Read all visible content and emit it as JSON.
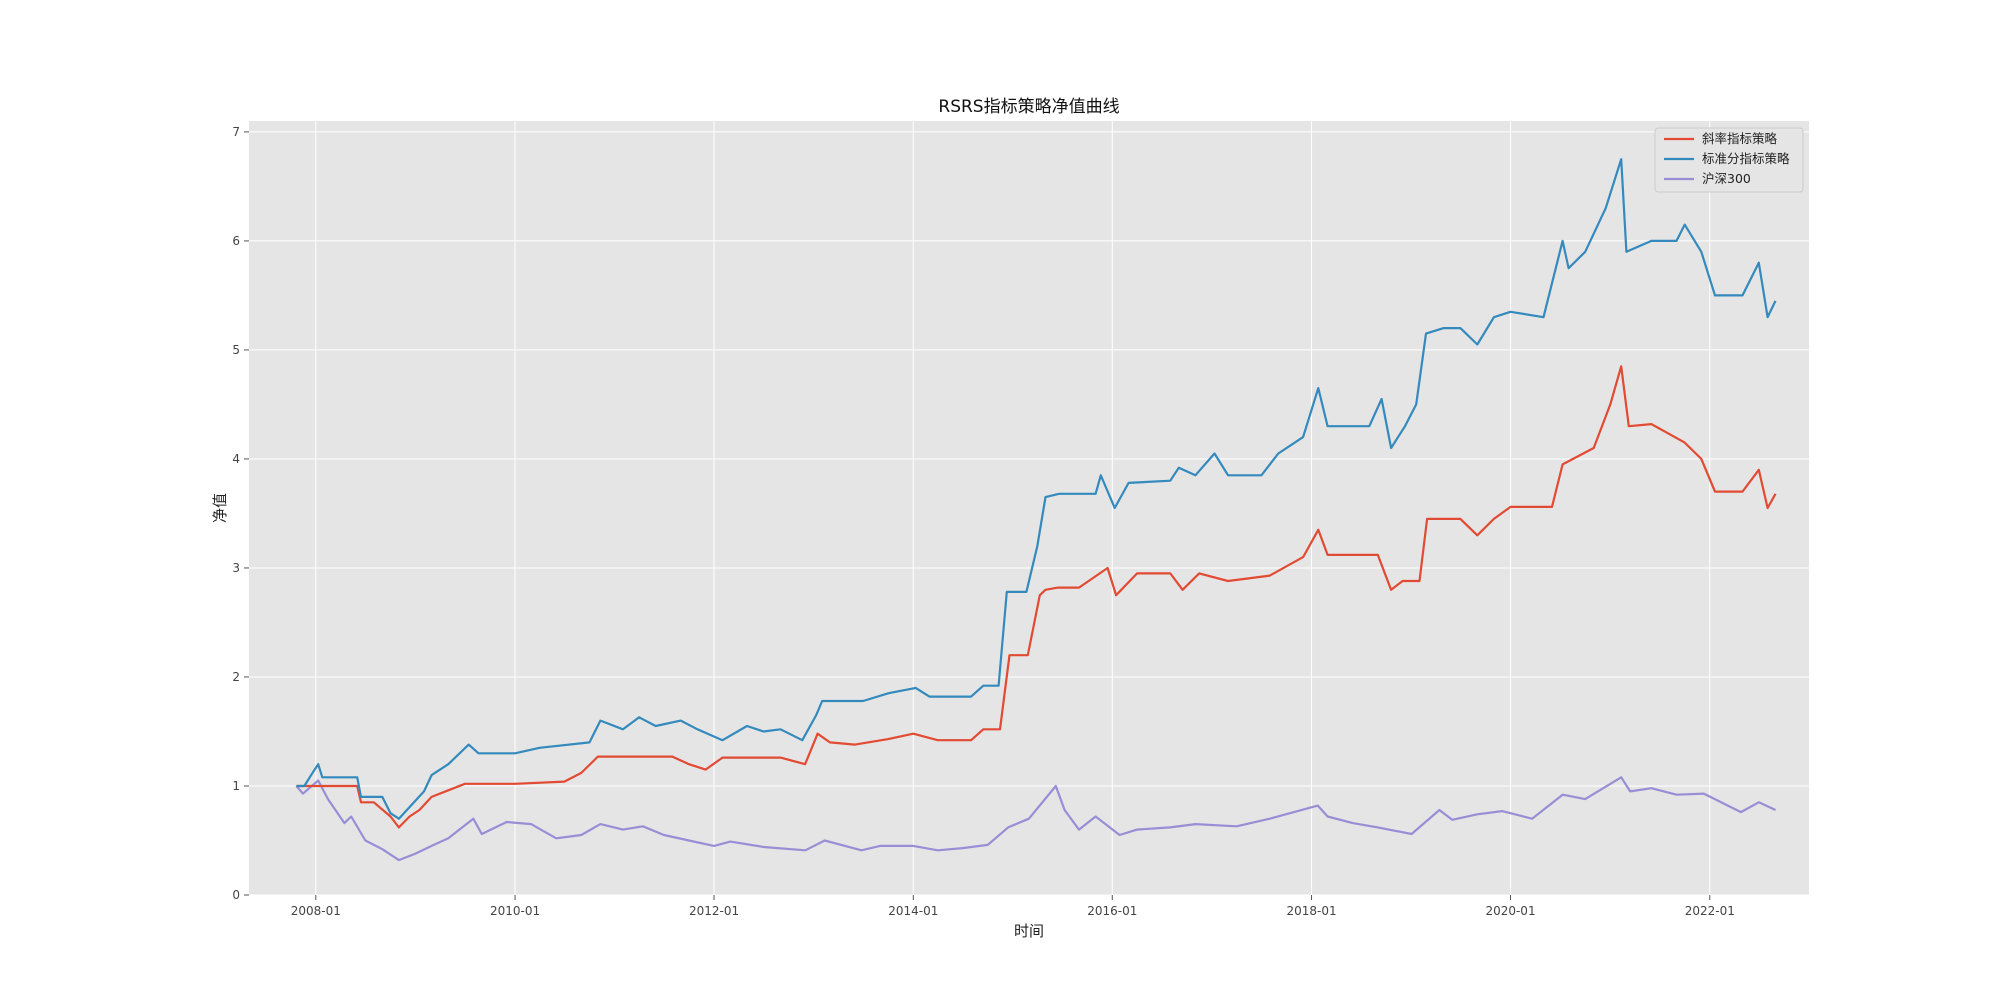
{
  "chart_data": {
    "type": "line",
    "title": "RSRS指标策略净值曲线",
    "xlabel": "时间",
    "ylabel": "净值",
    "xlim": [
      "2007-05-01",
      "2022-12-31"
    ],
    "ylim": [
      0,
      7.1
    ],
    "x_ticks": [
      "2008-01",
      "2010-01",
      "2012-01",
      "2014-01",
      "2016-01",
      "2018-01",
      "2020-01",
      "2022-01"
    ],
    "y_ticks": [
      "0",
      "1",
      "2",
      "3",
      "4",
      "5",
      "6",
      "7"
    ],
    "grid": true,
    "legend_position": "top-right",
    "legend": [
      "斜率指标策略",
      "标准分指标策略",
      "沪深300"
    ],
    "colors": {
      "background": "#e5e5e5",
      "grid": "#ffffff",
      "slope": "#e24a33",
      "zscore": "#348abd",
      "index": "#988ed5"
    },
    "series": [
      {
        "name": "斜率指标策略",
        "color": "#e24a33",
        "points": [
          [
            "2007-10-22",
            1.0
          ],
          [
            "2007-11-20",
            1.0
          ],
          [
            "2008-06-01",
            1.0
          ],
          [
            "2008-06-15",
            0.85
          ],
          [
            "2008-08-01",
            0.85
          ],
          [
            "2008-10-01",
            0.72
          ],
          [
            "2008-11-01",
            0.62
          ],
          [
            "2008-12-10",
            0.72
          ],
          [
            "2009-01-15",
            0.78
          ],
          [
            "2009-03-01",
            0.9
          ],
          [
            "2009-05-01",
            0.96
          ],
          [
            "2009-07-01",
            1.02
          ],
          [
            "2010-01-01",
            1.02
          ],
          [
            "2010-07-01",
            1.04
          ],
          [
            "2010-09-01",
            1.12
          ],
          [
            "2010-11-01",
            1.27
          ],
          [
            "2011-08-01",
            1.27
          ],
          [
            "2011-10-01",
            1.2
          ],
          [
            "2011-12-01",
            1.15
          ],
          [
            "2012-02-01",
            1.26
          ],
          [
            "2012-09-01",
            1.26
          ],
          [
            "2012-11-30",
            1.2
          ],
          [
            "2013-01-15",
            1.48
          ],
          [
            "2013-03-01",
            1.4
          ],
          [
            "2013-06-01",
            1.38
          ],
          [
            "2013-10-01",
            1.43
          ],
          [
            "2014-01-01",
            1.48
          ],
          [
            "2014-04-01",
            1.42
          ],
          [
            "2014-08-01",
            1.42
          ],
          [
            "2014-09-15",
            1.52
          ],
          [
            "2014-11-15",
            1.52
          ],
          [
            "2014-12-20",
            2.2
          ],
          [
            "2015-02-25",
            2.2
          ],
          [
            "2015-04-10",
            2.75
          ],
          [
            "2015-05-01",
            2.8
          ],
          [
            "2015-06-15",
            2.82
          ],
          [
            "2015-09-01",
            2.82
          ],
          [
            "2015-12-15",
            3.0
          ],
          [
            "2016-01-15",
            2.75
          ],
          [
            "2016-04-01",
            2.95
          ],
          [
            "2016-08-01",
            2.95
          ],
          [
            "2016-09-15",
            2.8
          ],
          [
            "2016-11-15",
            2.95
          ],
          [
            "2017-03-01",
            2.88
          ],
          [
            "2017-08-01",
            2.93
          ],
          [
            "2017-12-01",
            3.1
          ],
          [
            "2018-01-26",
            3.35
          ],
          [
            "2018-03-01",
            3.12
          ],
          [
            "2018-09-01",
            3.12
          ],
          [
            "2018-10-20",
            2.8
          ],
          [
            "2018-12-01",
            2.88
          ],
          [
            "2019-02-01",
            2.88
          ],
          [
            "2019-03-01",
            3.45
          ],
          [
            "2019-05-01",
            3.45
          ],
          [
            "2019-07-01",
            3.45
          ],
          [
            "2019-09-01",
            3.3
          ],
          [
            "2019-11-01",
            3.45
          ],
          [
            "2020-01-01",
            3.56
          ],
          [
            "2020-06-01",
            3.56
          ],
          [
            "2020-07-10",
            3.95
          ],
          [
            "2020-11-01",
            4.1
          ],
          [
            "2021-01-01",
            4.5
          ],
          [
            "2021-02-10",
            4.85
          ],
          [
            "2021-03-10",
            4.3
          ],
          [
            "2021-06-01",
            4.32
          ],
          [
            "2021-10-01",
            4.15
          ],
          [
            "2021-12-01",
            4.0
          ],
          [
            "2022-01-20",
            3.7
          ],
          [
            "2022-05-01",
            3.7
          ],
          [
            "2022-06-30",
            3.9
          ],
          [
            "2022-08-01",
            3.55
          ],
          [
            "2022-08-30",
            3.68
          ]
        ]
      },
      {
        "name": "标准分指标策略",
        "color": "#348abd",
        "points": [
          [
            "2007-10-22",
            1.0
          ],
          [
            "2007-11-20",
            1.0
          ],
          [
            "2007-12-20",
            1.12
          ],
          [
            "2008-01-10",
            1.2
          ],
          [
            "2008-01-25",
            1.08
          ],
          [
            "2008-06-01",
            1.08
          ],
          [
            "2008-06-15",
            0.9
          ],
          [
            "2008-09-01",
            0.9
          ],
          [
            "2008-10-01",
            0.75
          ],
          [
            "2008-11-01",
            0.7
          ],
          [
            "2008-12-15",
            0.82
          ],
          [
            "2009-02-01",
            0.95
          ],
          [
            "2009-03-01",
            1.1
          ],
          [
            "2009-05-01",
            1.2
          ],
          [
            "2009-07-15",
            1.38
          ],
          [
            "2009-08-20",
            1.3
          ],
          [
            "2010-01-01",
            1.3
          ],
          [
            "2010-04-01",
            1.35
          ],
          [
            "2010-10-01",
            1.4
          ],
          [
            "2010-11-10",
            1.6
          ],
          [
            "2011-02-01",
            1.52
          ],
          [
            "2011-04-01",
            1.63
          ],
          [
            "2011-06-01",
            1.55
          ],
          [
            "2011-09-01",
            1.6
          ],
          [
            "2011-11-01",
            1.52
          ],
          [
            "2012-02-01",
            1.42
          ],
          [
            "2012-05-01",
            1.55
          ],
          [
            "2012-07-01",
            1.5
          ],
          [
            "2012-09-01",
            1.52
          ],
          [
            "2012-11-20",
            1.42
          ],
          [
            "2013-01-10",
            1.65
          ],
          [
            "2013-02-01",
            1.78
          ],
          [
            "2013-07-01",
            1.78
          ],
          [
            "2013-10-01",
            1.85
          ],
          [
            "2014-01-10",
            1.9
          ],
          [
            "2014-03-01",
            1.82
          ],
          [
            "2014-08-01",
            1.82
          ],
          [
            "2014-09-15",
            1.92
          ],
          [
            "2014-11-10",
            1.92
          ],
          [
            "2014-12-10",
            2.78
          ],
          [
            "2015-02-20",
            2.78
          ],
          [
            "2015-04-01",
            3.2
          ],
          [
            "2015-05-01",
            3.65
          ],
          [
            "2015-06-20",
            3.68
          ],
          [
            "2015-11-01",
            3.68
          ],
          [
            "2015-11-20",
            3.85
          ],
          [
            "2016-01-10",
            3.55
          ],
          [
            "2016-03-01",
            3.78
          ],
          [
            "2016-08-01",
            3.8
          ],
          [
            "2016-09-01",
            3.92
          ],
          [
            "2016-11-01",
            3.85
          ],
          [
            "2017-01-10",
            4.05
          ],
          [
            "2017-03-01",
            3.85
          ],
          [
            "2017-07-01",
            3.85
          ],
          [
            "2017-09-01",
            4.05
          ],
          [
            "2017-12-01",
            4.2
          ],
          [
            "2018-01-26",
            4.65
          ],
          [
            "2018-03-01",
            4.3
          ],
          [
            "2018-08-01",
            4.3
          ],
          [
            "2018-09-15",
            4.55
          ],
          [
            "2018-10-20",
            4.1
          ],
          [
            "2018-12-10",
            4.3
          ],
          [
            "2019-01-20",
            4.5
          ],
          [
            "2019-02-25",
            5.15
          ],
          [
            "2019-05-01",
            5.2
          ],
          [
            "2019-07-01",
            5.2
          ],
          [
            "2019-09-01",
            5.05
          ],
          [
            "2019-11-01",
            5.3
          ],
          [
            "2020-01-01",
            5.35
          ],
          [
            "2020-05-01",
            5.3
          ],
          [
            "2020-07-10",
            6.0
          ],
          [
            "2020-08-01",
            5.75
          ],
          [
            "2020-10-01",
            5.9
          ],
          [
            "2020-12-15",
            6.3
          ],
          [
            "2021-02-10",
            6.75
          ],
          [
            "2021-03-01",
            5.9
          ],
          [
            "2021-06-01",
            6.0
          ],
          [
            "2021-09-01",
            6.0
          ],
          [
            "2021-10-01",
            6.15
          ],
          [
            "2021-12-01",
            5.9
          ],
          [
            "2022-01-20",
            5.5
          ],
          [
            "2022-05-01",
            5.5
          ],
          [
            "2022-06-30",
            5.8
          ],
          [
            "2022-08-01",
            5.3
          ],
          [
            "2022-08-30",
            5.45
          ]
        ]
      },
      {
        "name": "沪深300",
        "color": "#988ed5",
        "points": [
          [
            "2007-10-22",
            1.0
          ],
          [
            "2007-11-15",
            0.93
          ],
          [
            "2008-01-10",
            1.05
          ],
          [
            "2008-02-15",
            0.88
          ],
          [
            "2008-04-15",
            0.66
          ],
          [
            "2008-05-10",
            0.72
          ],
          [
            "2008-07-01",
            0.5
          ],
          [
            "2008-09-01",
            0.42
          ],
          [
            "2008-11-01",
            0.32
          ],
          [
            "2009-01-01",
            0.38
          ],
          [
            "2009-03-01",
            0.45
          ],
          [
            "2009-05-01",
            0.52
          ],
          [
            "2009-08-01",
            0.7
          ],
          [
            "2009-09-01",
            0.56
          ],
          [
            "2009-12-01",
            0.67
          ],
          [
            "2010-03-01",
            0.65
          ],
          [
            "2010-06-01",
            0.52
          ],
          [
            "2010-09-01",
            0.55
          ],
          [
            "2010-11-10",
            0.65
          ],
          [
            "2011-02-01",
            0.6
          ],
          [
            "2011-04-15",
            0.63
          ],
          [
            "2011-07-01",
            0.55
          ],
          [
            "2011-10-01",
            0.5
          ],
          [
            "2012-01-01",
            0.45
          ],
          [
            "2012-03-01",
            0.49
          ],
          [
            "2012-07-01",
            0.44
          ],
          [
            "2012-12-01",
            0.41
          ],
          [
            "2013-02-10",
            0.5
          ],
          [
            "2013-06-25",
            0.41
          ],
          [
            "2013-09-01",
            0.45
          ],
          [
            "2014-01-01",
            0.45
          ],
          [
            "2014-04-01",
            0.41
          ],
          [
            "2014-07-01",
            0.43
          ],
          [
            "2014-10-01",
            0.46
          ],
          [
            "2014-12-15",
            0.62
          ],
          [
            "2015-03-01",
            0.7
          ],
          [
            "2015-06-08",
            1.0
          ],
          [
            "2015-07-10",
            0.78
          ],
          [
            "2015-09-01",
            0.6
          ],
          [
            "2015-11-01",
            0.72
          ],
          [
            "2016-01-28",
            0.55
          ],
          [
            "2016-04-01",
            0.6
          ],
          [
            "2016-08-01",
            0.62
          ],
          [
            "2016-11-01",
            0.65
          ],
          [
            "2017-04-01",
            0.63
          ],
          [
            "2017-08-01",
            0.7
          ],
          [
            "2018-01-24",
            0.82
          ],
          [
            "2018-03-01",
            0.72
          ],
          [
            "2018-06-01",
            0.66
          ],
          [
            "2018-09-01",
            0.62
          ],
          [
            "2019-01-03",
            0.56
          ],
          [
            "2019-04-15",
            0.78
          ],
          [
            "2019-06-01",
            0.69
          ],
          [
            "2019-09-01",
            0.74
          ],
          [
            "2019-12-01",
            0.77
          ],
          [
            "2020-03-20",
            0.7
          ],
          [
            "2020-07-10",
            0.92
          ],
          [
            "2020-10-01",
            0.88
          ],
          [
            "2021-02-10",
            1.08
          ],
          [
            "2021-03-15",
            0.95
          ],
          [
            "2021-06-01",
            0.98
          ],
          [
            "2021-09-01",
            0.92
          ],
          [
            "2021-12-10",
            0.93
          ],
          [
            "2022-04-25",
            0.76
          ],
          [
            "2022-06-30",
            0.85
          ],
          [
            "2022-08-30",
            0.78
          ]
        ]
      }
    ]
  }
}
